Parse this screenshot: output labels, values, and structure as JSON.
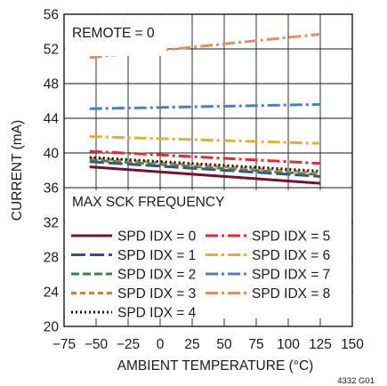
{
  "chart_data": {
    "type": "line",
    "title": "",
    "xlabel": "AMBIENT TEMPERATURE (°C)",
    "ylabel": "CURRENT (mA)",
    "xlim": [
      -75,
      150
    ],
    "ylim": [
      20,
      56
    ],
    "xticks": [
      -75,
      -50,
      -25,
      0,
      25,
      50,
      75,
      100,
      125,
      150
    ],
    "xtick_labels": [
      "−75",
      "−50",
      "−25",
      "0",
      "25",
      "50",
      "75",
      "100",
      "125",
      "150"
    ],
    "yticks": [
      20,
      24,
      28,
      32,
      36,
      40,
      44,
      48,
      52,
      56
    ],
    "ytick_labels": [
      "20",
      "24",
      "28",
      "32",
      "36",
      "40",
      "44",
      "48",
      "52",
      "56"
    ],
    "grid": true,
    "annotation": "REMOTE = 0",
    "legend_title": "MAX SCK FREQUENCY",
    "legend_placement": "bottom-left",
    "figure_code": "4332 G01",
    "series": [
      {
        "name": "SPD IDX = 0",
        "color": "#7a0f2e",
        "style": "solid",
        "x": [
          -55,
          125
        ],
        "y": [
          38.4,
          36.5
        ]
      },
      {
        "name": "SPD IDX = 1",
        "color": "#2e4f9e",
        "style": "longdash",
        "x": [
          -55,
          125
        ],
        "y": [
          39.0,
          37.3
        ]
      },
      {
        "name": "SPD IDX = 2",
        "color": "#2f8a4b",
        "style": "dash",
        "x": [
          -55,
          125
        ],
        "y": [
          39.2,
          37.5
        ]
      },
      {
        "name": "SPD IDX = 3",
        "color": "#d57f3b",
        "style": "shortdash",
        "x": [
          -55,
          125
        ],
        "y": [
          39.4,
          37.7
        ]
      },
      {
        "name": "SPD IDX = 4",
        "color": "#111111",
        "style": "dot",
        "x": [
          -55,
          125
        ],
        "y": [
          39.5,
          37.9
        ]
      },
      {
        "name": "SPD IDX = 5",
        "color": "#e02b3a",
        "style": "dashdot",
        "x": [
          -55,
          125
        ],
        "y": [
          40.2,
          38.8
        ]
      },
      {
        "name": "SPD IDX = 6",
        "color": "#d9b43a",
        "style": "dashdot",
        "x": [
          -55,
          125
        ],
        "y": [
          41.9,
          41.1
        ]
      },
      {
        "name": "SPD IDX = 7",
        "color": "#4a7fc1",
        "style": "dashdot",
        "x": [
          -55,
          125
        ],
        "y": [
          45.1,
          45.6
        ]
      },
      {
        "name": "SPD IDX = 8",
        "color": "#e09060",
        "style": "dashdot",
        "x": [
          -55,
          125
        ],
        "y": [
          51.0,
          53.7
        ]
      }
    ]
  }
}
